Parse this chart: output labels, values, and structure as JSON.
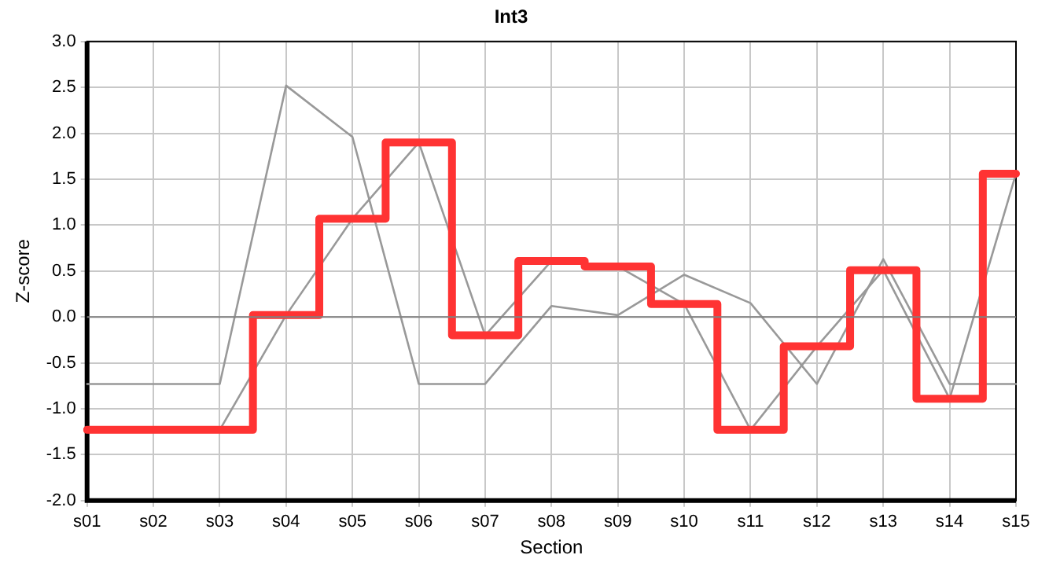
{
  "chart_data": {
    "type": "line",
    "title": "Int3",
    "xlabel": "Section",
    "ylabel": "Z-score",
    "categories": [
      "s01",
      "s02",
      "s03",
      "s04",
      "s05",
      "s06",
      "s07",
      "s08",
      "s09",
      "s10",
      "s11",
      "s12",
      "s13",
      "s14",
      "s15"
    ],
    "series": [
      {
        "type": "line",
        "color": "#999999",
        "values": [
          -0.73,
          -0.73,
          -0.73,
          2.52,
          1.96,
          -0.73,
          -0.73,
          0.12,
          0.02,
          0.46,
          0.15,
          -0.73,
          0.63,
          -0.73,
          -0.73
        ]
      },
      {
        "type": "line",
        "color": "#999999",
        "values": [
          -1.23,
          -1.23,
          -1.23,
          0.02,
          1.07,
          1.9,
          -0.2,
          0.61,
          0.55,
          0.14,
          -1.23,
          -0.32,
          0.51,
          -0.89,
          1.56
        ]
      },
      {
        "type": "step",
        "color": "#ff3333",
        "values": [
          -1.23,
          -1.23,
          -1.23,
          0.02,
          1.07,
          1.9,
          -0.2,
          0.61,
          0.55,
          0.14,
          -1.23,
          -0.32,
          0.51,
          -0.89,
          1.56
        ]
      }
    ],
    "ylim": [
      -2,
      3
    ],
    "yticks": [
      {
        "value": -2,
        "label": "-2.0"
      },
      {
        "value": -1.5,
        "label": "-1.5"
      },
      {
        "value": -1,
        "label": "-1.0"
      },
      {
        "value": -0.5,
        "label": "-0.5"
      },
      {
        "value": 0,
        "label": "0.0"
      },
      {
        "value": 0.5,
        "label": "0.5"
      },
      {
        "value": 1,
        "label": "1.0"
      },
      {
        "value": 1.5,
        "label": "1.5"
      },
      {
        "value": 2,
        "label": "2.0"
      },
      {
        "value": 2.5,
        "label": "2.5"
      },
      {
        "value": 3,
        "label": "3.0"
      }
    ],
    "ref_lines": [
      {
        "axis": "y",
        "value": 0,
        "color": "#808080"
      }
    ],
    "grid": true,
    "legend": false,
    "marker": "none"
  }
}
